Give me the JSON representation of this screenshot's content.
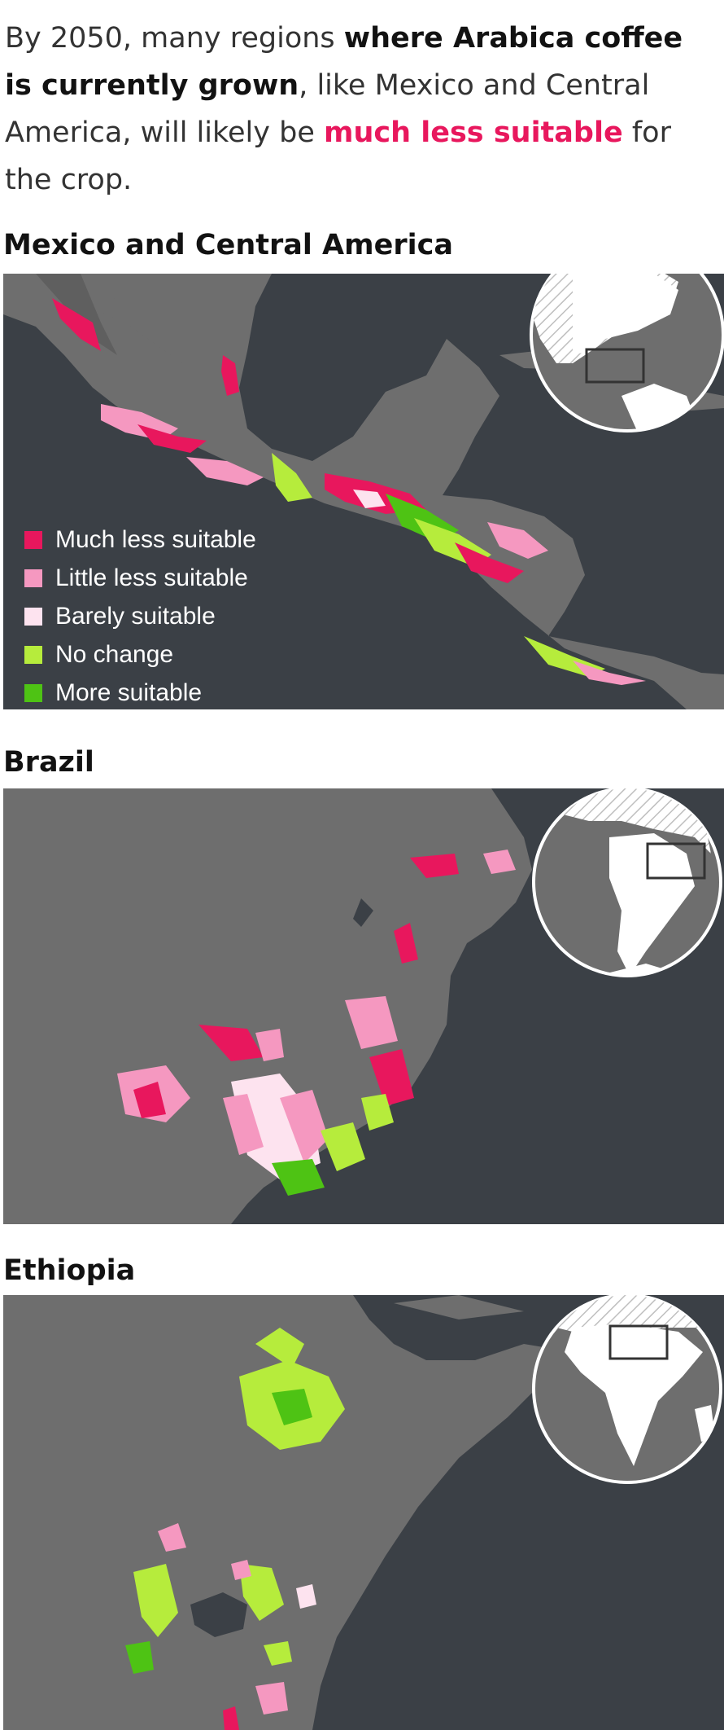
{
  "intro": {
    "part1": "By 2050, many regions ",
    "bold1": "where Arabica coffee is currently grown",
    "part2": ", like Mexico and Central America, will likely be ",
    "highlight": "much less suitable",
    "part3": " for the crop."
  },
  "maps": [
    {
      "title": "Mexico and Central America"
    },
    {
      "title": "Brazil"
    },
    {
      "title": "Ethiopia"
    }
  ],
  "legend": [
    {
      "label": "Much less suitable",
      "color": "#e8175d"
    },
    {
      "label": "Little less suitable",
      "color": "#f598c0"
    },
    {
      "label": "Barely suitable",
      "color": "#fde3ef"
    },
    {
      "label": "No change",
      "color": "#b6ec3c"
    },
    {
      "label": "More suitable",
      "color": "#4ec314"
    }
  ],
  "colors": {
    "ocean": "#3b4046",
    "land": "#6e6e6e",
    "globe_land": "#ffffff",
    "globe_ocean": "#6e6e6e"
  }
}
